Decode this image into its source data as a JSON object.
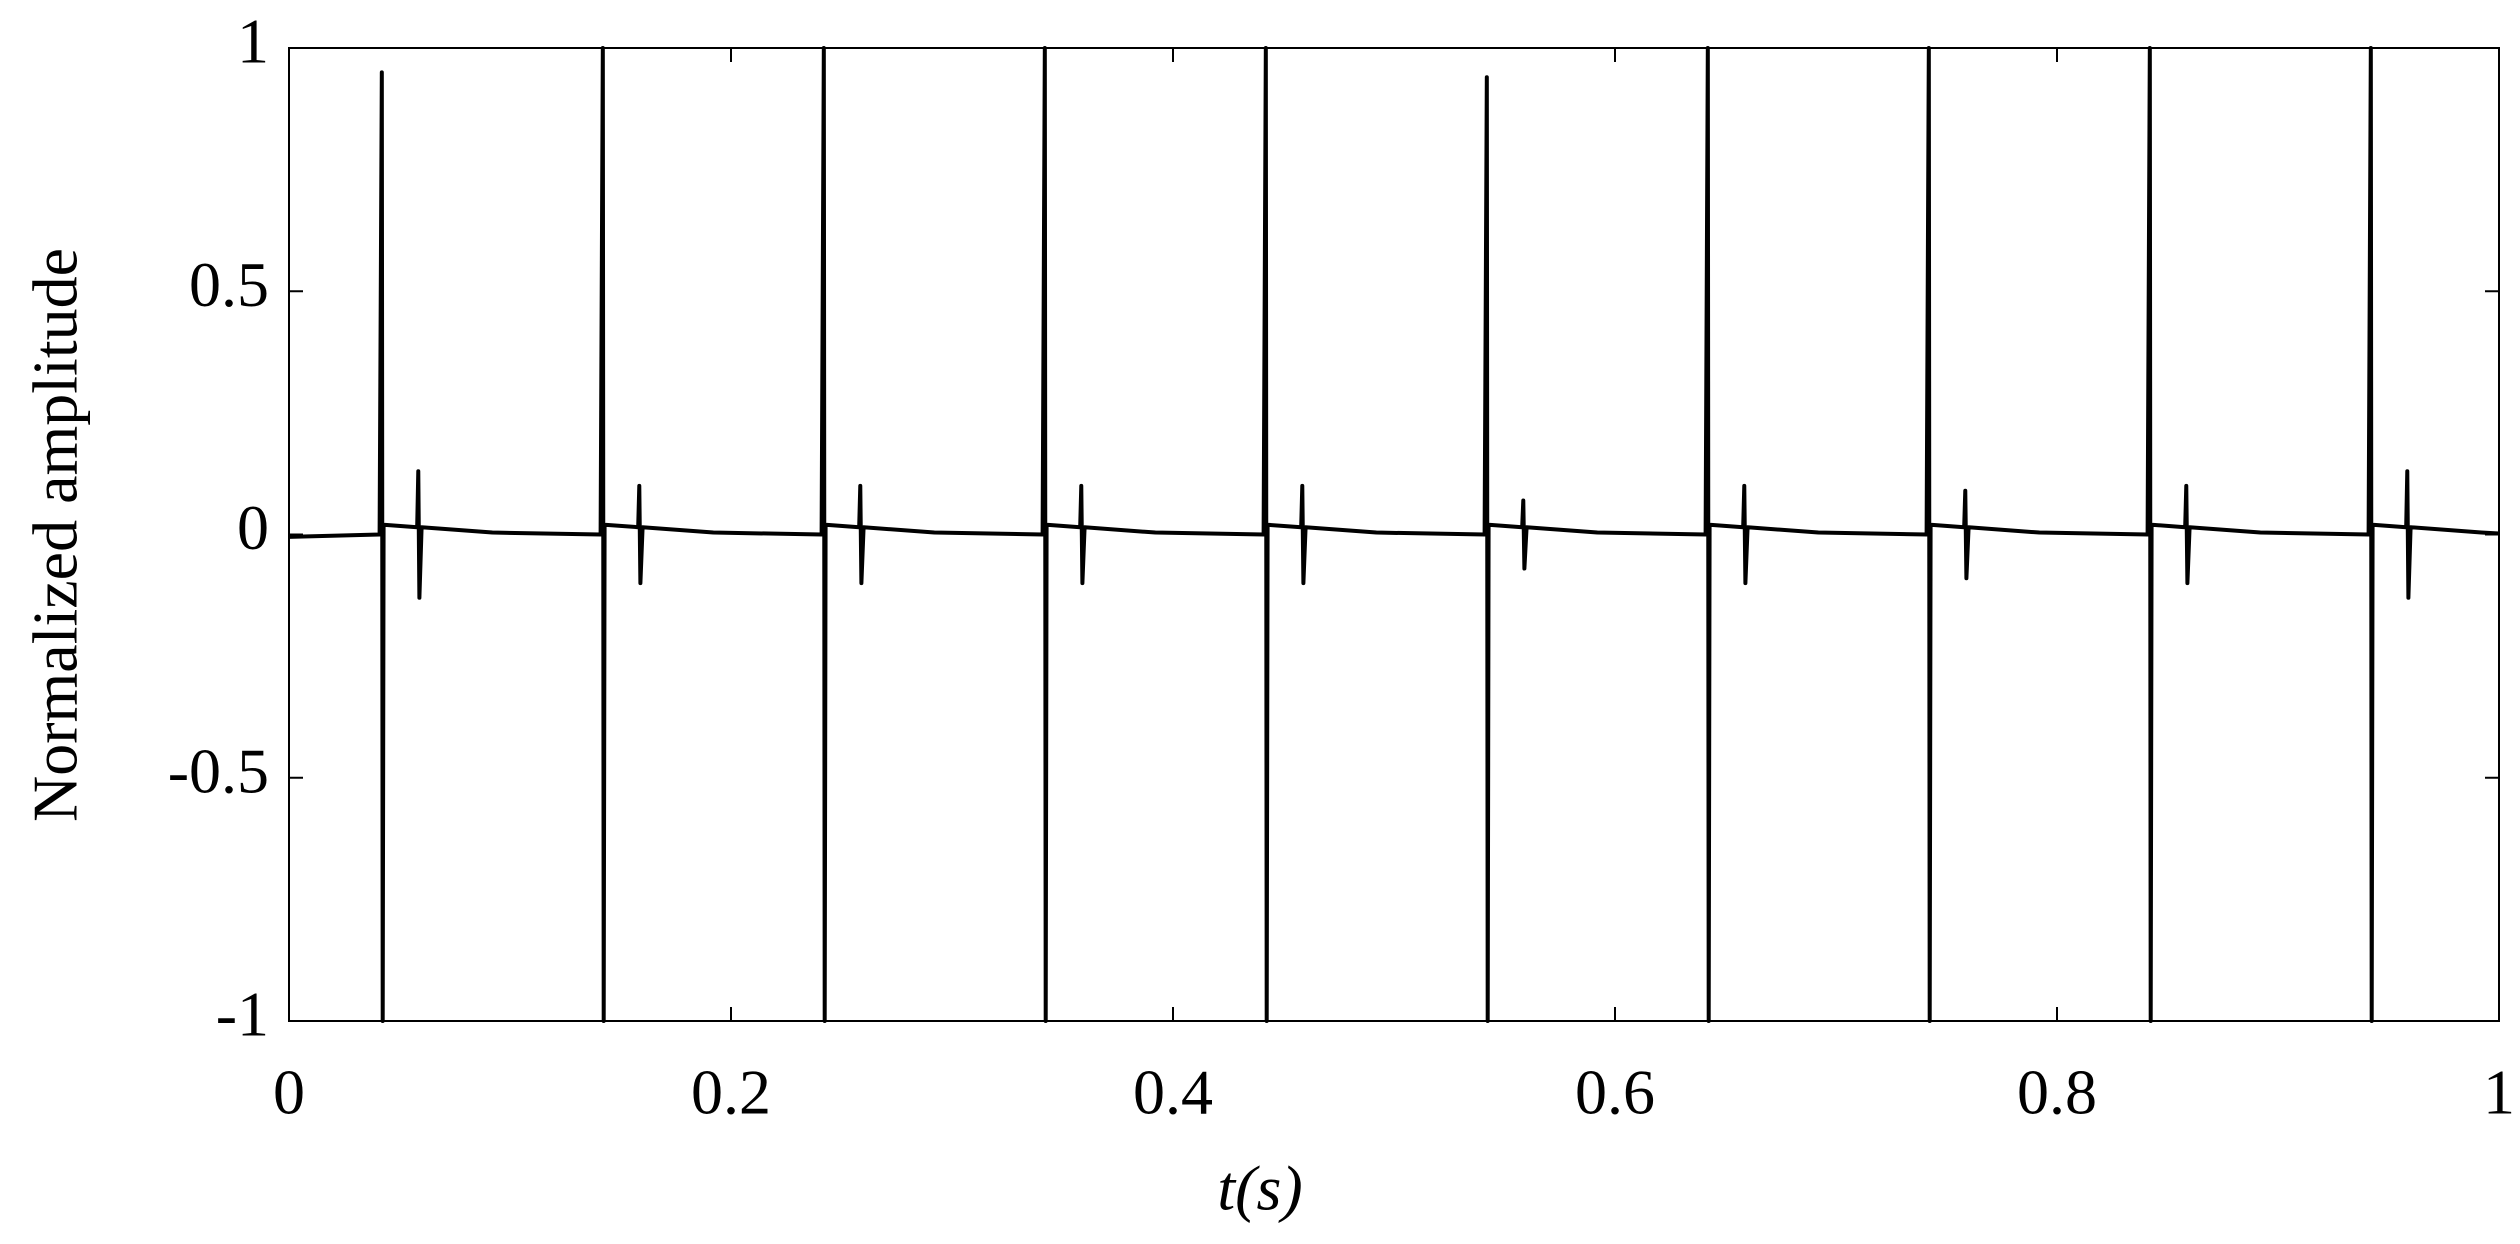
{
  "chart_data": {
    "type": "line",
    "xlabel": "t(s)",
    "ylabel": "Normalized amplitude",
    "color": "#000000",
    "x": [
      0,
      0.041,
      0.042,
      0.0424,
      0.0428,
      0.058,
      0.0585,
      0.059,
      0.06,
      0.092,
      0.141,
      0.142,
      0.1424,
      0.1428,
      0.158,
      0.1585,
      0.159,
      0.16,
      0.192,
      0.241,
      0.242,
      0.2424,
      0.2428,
      0.258,
      0.2585,
      0.259,
      0.26,
      0.292,
      0.341,
      0.342,
      0.3424,
      0.3428,
      0.358,
      0.3585,
      0.359,
      0.36,
      0.392,
      0.441,
      0.442,
      0.4424,
      0.4428,
      0.458,
      0.4585,
      0.459,
      0.46,
      0.492,
      0.541,
      0.542,
      0.5424,
      0.5428,
      0.558,
      0.5585,
      0.559,
      0.56,
      0.592,
      0.641,
      0.642,
      0.6424,
      0.6428,
      0.658,
      0.6585,
      0.659,
      0.66,
      0.692,
      0.741,
      0.742,
      0.7424,
      0.7428,
      0.758,
      0.7585,
      0.759,
      0.76,
      0.792,
      0.841,
      0.842,
      0.8424,
      0.8428,
      0.858,
      0.8585,
      0.859,
      0.86,
      0.892,
      0.941,
      0.942,
      0.9424,
      0.9428,
      0.958,
      0.9585,
      0.959,
      0.96,
      0.992,
      1
    ],
    "values": [
      -0.005,
      0,
      0.95,
      -1,
      0.02,
      0.015,
      0.13,
      -0.13,
      0.015,
      0.004,
      0,
      1,
      -1,
      0.02,
      0.015,
      0.1,
      -0.1,
      0.015,
      0.004,
      0,
      1,
      -1,
      0.02,
      0.015,
      0.1,
      -0.1,
      0.015,
      0.004,
      0,
      1,
      -1,
      0.02,
      0.015,
      0.1,
      -0.1,
      0.015,
      0.004,
      0,
      1,
      -1,
      0.02,
      0.015,
      0.1,
      -0.1,
      0.015,
      0.004,
      0,
      0.94,
      -1,
      0.02,
      0.015,
      0.07,
      -0.07,
      0.015,
      0.004,
      0,
      1,
      -1,
      0.02,
      0.015,
      0.1,
      -0.1,
      0.015,
      0.004,
      0,
      1,
      -1,
      0.02,
      0.015,
      0.09,
      -0.09,
      0.015,
      0.004,
      0,
      1,
      -1,
      0.02,
      0.015,
      0.1,
      -0.1,
      0.015,
      0.004,
      0,
      1,
      -1,
      0.02,
      0.015,
      0.13,
      -0.13,
      0.015,
      0.004,
      0.002
    ],
    "xlim": [
      0,
      1
    ],
    "ylim": [
      -1,
      1
    ],
    "xticks": [
      0,
      0.2,
      0.4,
      0.6,
      0.8,
      1
    ],
    "yticks": [
      -1,
      -0.5,
      0,
      0.5,
      1
    ]
  }
}
